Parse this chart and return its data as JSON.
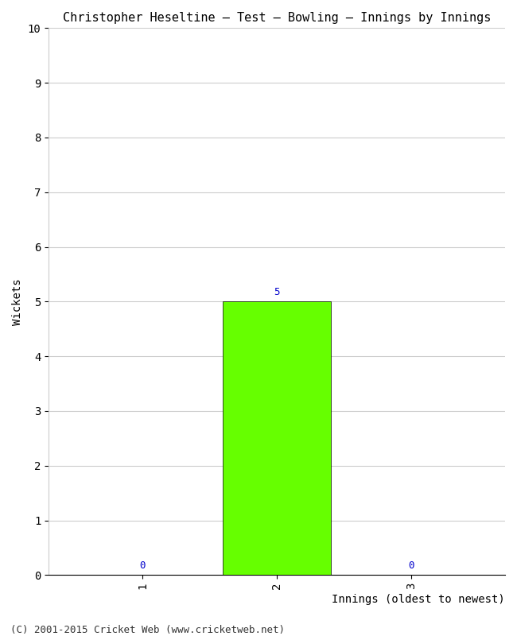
{
  "title": "Christopher Heseltine – Test – Bowling – Innings by Innings",
  "xlabel": "Innings (oldest to newest)",
  "ylabel": "Wickets",
  "categories": [
    "1",
    "2",
    "3"
  ],
  "values": [
    0,
    5,
    0
  ],
  "bar_color": "#66ff00",
  "bar_edge_color": "#000000",
  "ylim": [
    0,
    10
  ],
  "yticks": [
    0,
    1,
    2,
    3,
    4,
    5,
    6,
    7,
    8,
    9,
    10
  ],
  "background_color": "#ffffff",
  "grid_color": "#cccccc",
  "annotation_color": "#0000cc",
  "footer_text": "(C) 2001-2015 Cricket Web (www.cricketweb.net)",
  "title_fontsize": 11,
  "axis_label_fontsize": 10,
  "tick_fontsize": 10,
  "annotation_fontsize": 9,
  "footer_fontsize": 9
}
